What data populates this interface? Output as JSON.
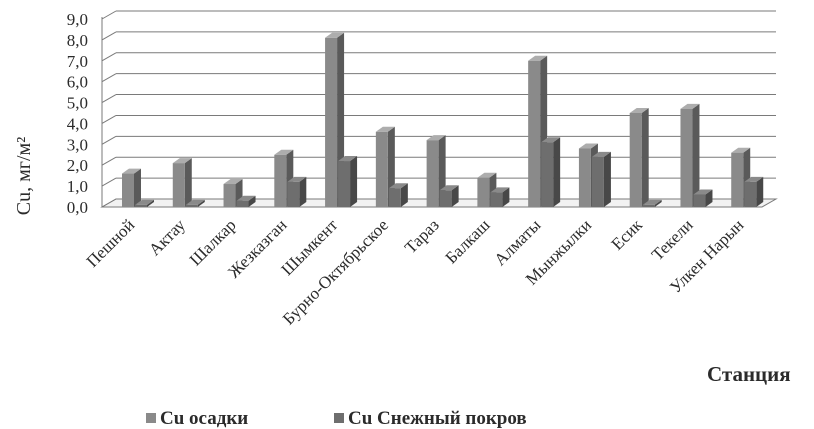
{
  "chart_data": {
    "type": "bar",
    "title": "",
    "xlabel": "Станция",
    "ylabel": "Cu, мг/м²",
    "ylim": [
      0,
      9
    ],
    "yticks": [
      "0,0",
      "1,0",
      "2,0",
      "3,0",
      "4,0",
      "5,0",
      "6,0",
      "7,0",
      "8,0",
      "9,0"
    ],
    "grid": true,
    "legend_position": "bottom",
    "categories": [
      "Пешной",
      "Актау",
      "Шалкар",
      "Жезказган",
      "Шымкент",
      "Бурно-Октябрьское",
      "Тараз",
      "Балкаш",
      "Алматы",
      "Мынжылки",
      "Есик",
      "Текели",
      "Улкен Нарын"
    ],
    "series": [
      {
        "name": "Cu осадки",
        "color": "#8a8a8a",
        "values": [
          1.6,
          2.1,
          1.1,
          2.5,
          8.1,
          3.6,
          3.2,
          1.4,
          7.0,
          2.8,
          4.5,
          4.7,
          2.6
        ]
      },
      {
        "name": "Cu Снежный покров",
        "color": "#6e6e6e",
        "values": [
          0.1,
          0.1,
          0.3,
          1.2,
          2.2,
          0.9,
          0.8,
          0.7,
          3.1,
          2.4,
          0.1,
          0.6,
          1.2
        ]
      }
    ]
  }
}
